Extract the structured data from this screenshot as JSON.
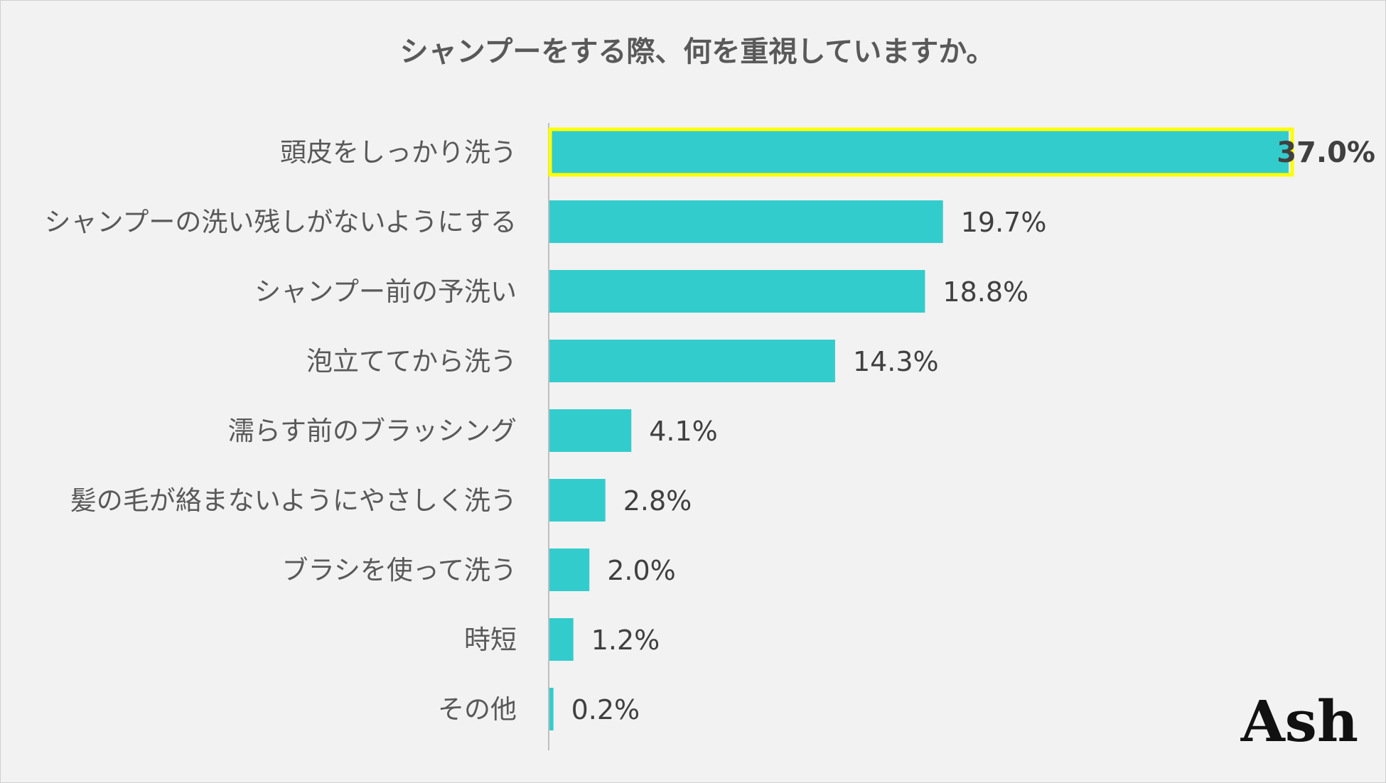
{
  "chart_data": {
    "type": "bar",
    "orientation": "horizontal",
    "title": "シャンプーをする際、何を重視していますか。",
    "categories": [
      "頭皮をしっかり洗う",
      "シャンプーの洗い残しがないようにする",
      "シャンプー前の予洗い",
      "泡立ててから洗う",
      "濡らす前のブラッシング",
      "髪の毛が絡まないようにやさしく洗う",
      "ブラシを使って洗う",
      "時短",
      "その他"
    ],
    "values": [
      37.0,
      19.7,
      18.8,
      14.3,
      4.1,
      2.8,
      2.0,
      1.2,
      0.2
    ],
    "value_labels": [
      "37.0%",
      "19.7%",
      "18.8%",
      "14.3%",
      "4.1%",
      "2.8%",
      "2.0%",
      "1.2%",
      "0.2%"
    ],
    "unit": "%",
    "xlim": [
      0,
      37.0
    ],
    "highlighted_category": "頭皮をしっかり洗う",
    "bar_color": "#33cccc",
    "highlight_color": "#ffff00",
    "legend": "none",
    "grid": false
  },
  "logo": {
    "text": "Ash"
  }
}
